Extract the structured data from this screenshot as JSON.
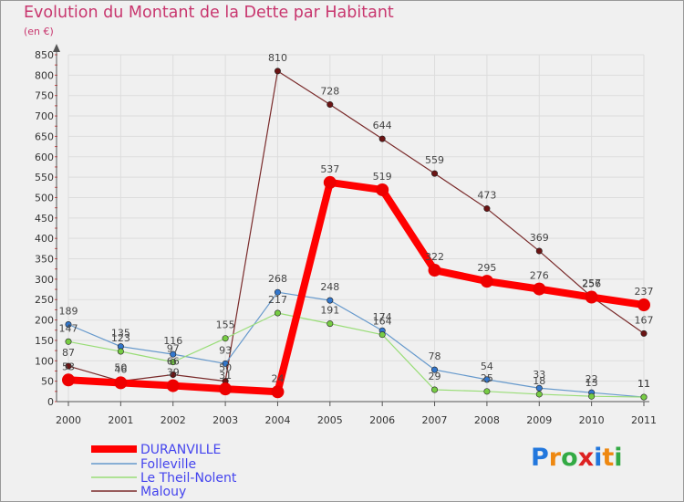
{
  "chart_data": {
    "type": "line",
    "title": "Evolution du Montant de la Dette par Habitant",
    "subtitle": "(en €)",
    "xlabel": "",
    "ylabel": "",
    "ylim": [
      0,
      850
    ],
    "yticks": [
      0,
      50,
      100,
      150,
      200,
      250,
      300,
      350,
      400,
      450,
      500,
      550,
      600,
      650,
      700,
      750,
      800,
      850
    ],
    "categories": [
      "2000",
      "2001",
      "2002",
      "2003",
      "2004",
      "2005",
      "2006",
      "2007",
      "2008",
      "2009",
      "2010",
      "2011"
    ],
    "series": [
      {
        "name": "Malouy",
        "color": "#7a2b2b",
        "point_color": "#6b1414",
        "values": [
          87,
          50,
          66,
          50,
          810,
          728,
          644,
          559,
          473,
          369,
          257,
          167
        ]
      },
      {
        "name": "Folleville",
        "color": "#6699cc",
        "point_color": "#3377cc",
        "values": [
          189,
          135,
          116,
          93,
          268,
          248,
          174,
          78,
          54,
          33,
          22,
          11
        ]
      },
      {
        "name": "Le Theil-Nolent",
        "color": "#99dd77",
        "point_color": "#77cc44",
        "values": [
          147,
          123,
          97,
          155,
          217,
          191,
          164,
          29,
          25,
          18,
          13,
          11
        ]
      },
      {
        "name": "DURANVILLE",
        "color": "#ff0000",
        "point_color": "#ee0000",
        "values": [
          53,
          46,
          39,
          31,
          24,
          537,
          519,
          322,
          295,
          276,
          256,
          237
        ]
      }
    ],
    "legend": [
      "DURANVILLE",
      "Folleville",
      "Le Theil-Nolent",
      "Malouy"
    ],
    "legend_position": "bottom-left"
  },
  "logo": {
    "letters": [
      "P",
      "r",
      "o",
      "x",
      "i",
      "t",
      "i"
    ]
  }
}
